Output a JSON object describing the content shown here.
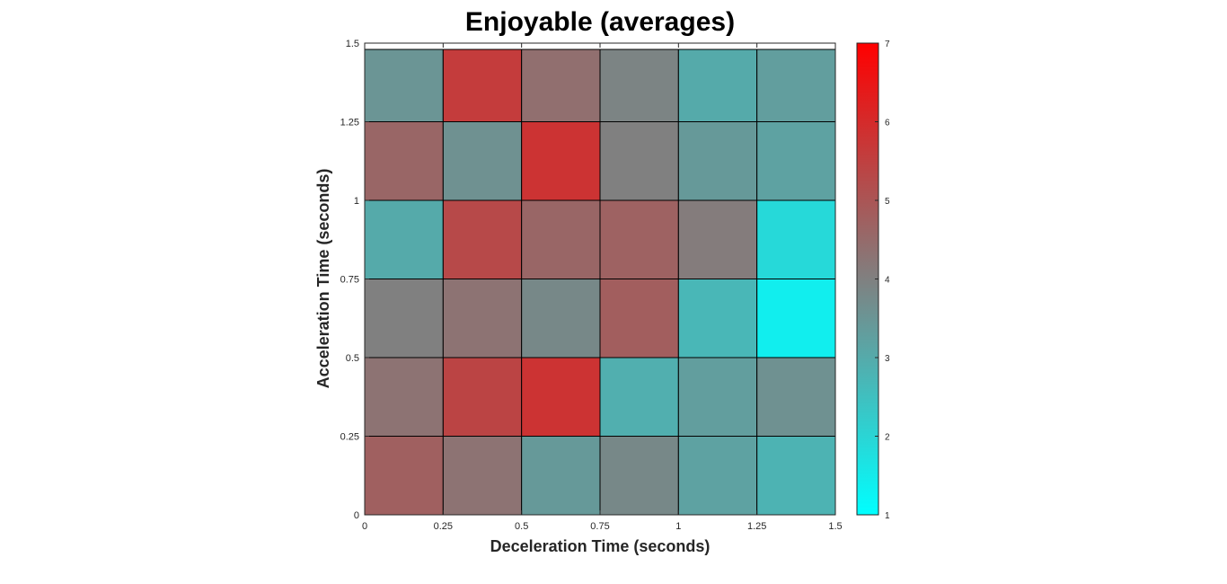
{
  "chart_data": {
    "type": "heatmap",
    "title": "Enjoyable (averages)",
    "xlabel": "Deceleration Time (seconds)",
    "ylabel": "Acceleration Time (seconds)",
    "xlim": [
      0,
      1.5
    ],
    "ylim": [
      0,
      1.5
    ],
    "x_ticks": [
      "0",
      "0.25",
      "0.5",
      "0.75",
      "1",
      "1.25",
      "1.5"
    ],
    "y_ticks": [
      "0",
      "0.25",
      "0.5",
      "0.75",
      "1",
      "1.25",
      "1.5"
    ],
    "x_edges": [
      0,
      0.25,
      0.5,
      0.75,
      1,
      1.25,
      1.5
    ],
    "y_edges": [
      0,
      0.25,
      0.5,
      0.75,
      1,
      1.25,
      1.48
    ],
    "values": [
      [
        4.75,
        4.3,
        3.4,
        3.8,
        3.2,
        2.8
      ],
      [
        4.3,
        5.4,
        5.8,
        2.9,
        3.3,
        3.6
      ],
      [
        4.0,
        4.3,
        3.8,
        4.8,
        2.7,
        1.4
      ],
      [
        3.0,
        5.3,
        4.6,
        4.7,
        4.1,
        1.9
      ],
      [
        4.6,
        3.6,
        5.8,
        4.0,
        3.4,
        3.2
      ],
      [
        3.5,
        5.6,
        4.4,
        3.9,
        3.0,
        3.3
      ]
    ],
    "colorbar": {
      "range": [
        1,
        7
      ],
      "ticks": [
        "1",
        "2",
        "3",
        "4",
        "5",
        "6",
        "7"
      ],
      "colors": {
        "low": "#00ffff",
        "mid": "#808080",
        "high": "#ff0000"
      }
    },
    "grid": false
  }
}
